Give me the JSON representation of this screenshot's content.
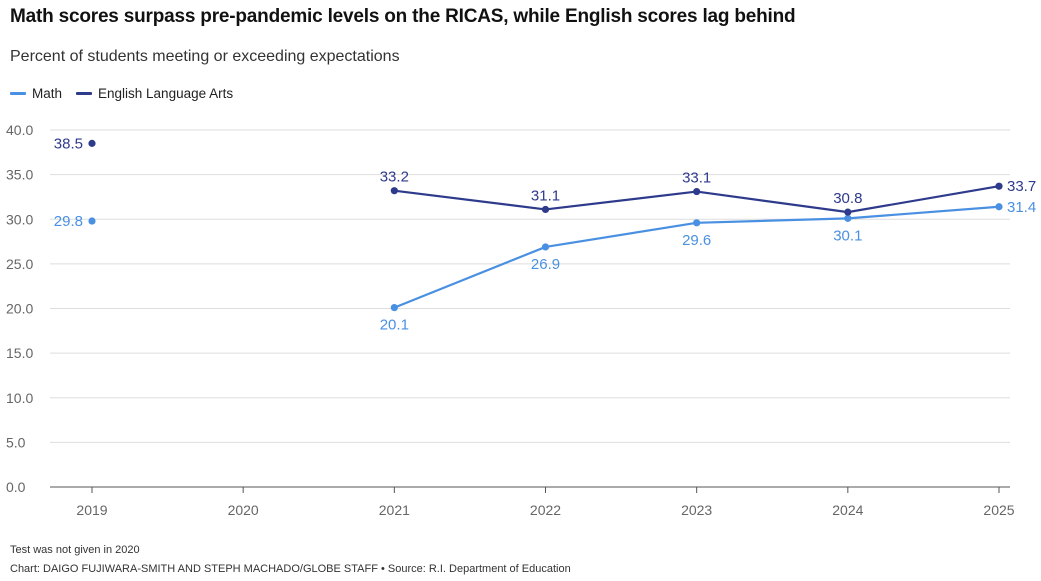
{
  "title": "Math scores surpass pre-pandemic levels on the RICAS, while English scores lag behind",
  "subtitle": "Percent of students meeting or exceeding expectations",
  "note": "Test was not given in 2020",
  "credit": "Chart: DAIGO FUJIWARA-SMITH AND STEPH MACHADO/GLOBE STAFF • Source: R.I. Department of Education",
  "chart_data": {
    "type": "line",
    "title": "Math scores surpass pre-pandemic levels on the RICAS, while English scores lag behind",
    "subtitle": "Percent of students meeting or exceeding expectations",
    "xlabel": "",
    "ylabel": "",
    "x": [
      "2019",
      "2020",
      "2021",
      "2022",
      "2023",
      "2024",
      "2025"
    ],
    "ylim": [
      0,
      40
    ],
    "yticks": [
      "0.0",
      "5.0",
      "10.0",
      "15.0",
      "20.0",
      "25.0",
      "30.0",
      "35.0",
      "40.0"
    ],
    "grid": true,
    "legend": "top-left",
    "series": [
      {
        "name": "Math",
        "color": "#4a90e2",
        "values": [
          29.8,
          null,
          20.1,
          26.9,
          29.6,
          30.1,
          31.4
        ],
        "labels": [
          "29.8",
          "",
          "20.1",
          "26.9",
          "29.6",
          "30.1",
          "31.4"
        ]
      },
      {
        "name": "English Language Arts",
        "color": "#2e3a8c",
        "values": [
          38.5,
          null,
          33.2,
          31.1,
          33.1,
          30.8,
          33.7
        ],
        "labels": [
          "38.5",
          "",
          "33.2",
          "31.1",
          "33.1",
          "30.8",
          "33.7"
        ]
      }
    ]
  }
}
